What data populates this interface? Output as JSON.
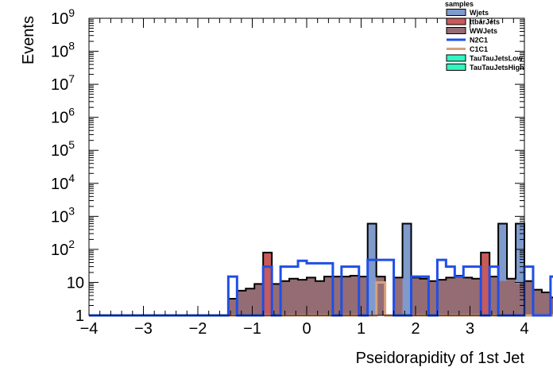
{
  "chart_data": {
    "type": "histogram",
    "xlabel": "Pseidorapidity of 1st Jet",
    "ylabel": "Events",
    "xlim": [
      -4,
      4
    ],
    "ylim": [
      1,
      1000000000
    ],
    "ylog": true,
    "bin_edges_start": -4,
    "bin_width": 0.16,
    "x_ticks": [
      {
        "v": -4,
        "label": "−4"
      },
      {
        "v": -3,
        "label": "−3"
      },
      {
        "v": -2,
        "label": "−2"
      },
      {
        "v": -1,
        "label": "−1"
      },
      {
        "v": 0,
        "label": "0"
      },
      {
        "v": 1,
        "label": "1"
      },
      {
        "v": 2,
        "label": "2"
      },
      {
        "v": 3,
        "label": "3"
      },
      {
        "v": 4,
        "label": "4"
      }
    ],
    "y_ticks": [
      {
        "v": 1,
        "base": "1",
        "exp": ""
      },
      {
        "v": 10,
        "base": "10",
        "exp": ""
      },
      {
        "v": 100,
        "base": "10",
        "exp": "2"
      },
      {
        "v": 1000,
        "base": "10",
        "exp": "3"
      },
      {
        "v": 10000,
        "base": "10",
        "exp": "4"
      },
      {
        "v": 100000,
        "base": "10",
        "exp": "5"
      },
      {
        "v": 1000000,
        "base": "10",
        "exp": "6"
      },
      {
        "v": 10000000,
        "base": "10",
        "exp": "7"
      },
      {
        "v": 100000000,
        "base": "10",
        "exp": "8"
      },
      {
        "v": 1000000000,
        "base": "10",
        "exp": "9"
      }
    ],
    "legend": {
      "title": "samples",
      "position": "top-right",
      "entries": [
        {
          "name": "Wjets",
          "style": "fill",
          "color": "#7f9acc"
        },
        {
          "name": "ttbarJets",
          "style": "fill",
          "color": "#c85a5a"
        },
        {
          "name": "WWJets",
          "style": "fill",
          "color": "#946c74"
        },
        {
          "name": "N2C1",
          "style": "line",
          "color": "#1f4fe6"
        },
        {
          "name": "C1C1",
          "style": "line",
          "color": "#d9a07a"
        },
        {
          "name": "TauTauJetsLow",
          "style": "fill",
          "color": "#33f5c0"
        },
        {
          "name": "TauTauJetsHigh",
          "style": "fill",
          "color": "#33f5c0"
        }
      ]
    },
    "stack": {
      "wwjets": [
        0,
        0,
        0,
        0,
        0,
        0,
        0,
        0,
        0,
        0,
        0,
        0,
        0,
        0,
        0,
        0,
        3.2,
        5.6,
        6.5,
        9,
        0,
        9,
        11,
        13,
        12,
        14,
        11,
        15,
        15,
        15,
        16,
        15,
        0,
        15,
        0,
        14,
        0,
        14,
        13,
        11,
        12,
        14,
        16,
        14,
        13,
        0,
        15,
        11,
        13,
        9,
        11,
        6,
        5,
        3.5,
        0,
        0,
        0,
        0,
        0,
        0,
        0,
        0,
        0,
        0,
        0,
        0,
        0,
        0,
        0,
        0,
        0,
        0,
        0,
        0,
        0,
        0,
        0,
        0,
        0,
        0
      ],
      "ttbar": [
        0,
        0,
        0,
        0,
        0,
        0,
        0,
        0,
        0,
        0,
        0,
        0,
        0,
        0,
        0,
        0,
        3.2,
        5.6,
        6.5,
        9,
        80,
        9,
        11,
        13,
        12,
        14,
        11,
        15,
        15,
        15,
        16,
        15,
        0,
        15,
        0,
        14,
        0,
        14,
        13,
        11,
        12,
        14,
        16,
        14,
        13,
        80,
        15,
        11,
        13,
        9,
        11,
        6,
        5,
        3.5,
        0,
        0,
        0,
        0,
        0,
        0,
        0,
        0,
        0,
        0,
        0,
        0,
        0,
        0,
        0,
        0,
        0,
        0,
        0,
        0,
        0,
        0,
        0,
        0,
        0,
        0
      ],
      "wjets": [
        0,
        0,
        0,
        0,
        0,
        0,
        0,
        0,
        0,
        0,
        0,
        0,
        0,
        0,
        0,
        0,
        3.2,
        5.6,
        6.5,
        9,
        80,
        9,
        11,
        13,
        12,
        14,
        11,
        15,
        15,
        15,
        16,
        15,
        600,
        15,
        0,
        14,
        600,
        14,
        13,
        11,
        12,
        14,
        16,
        14,
        13,
        80,
        15,
        600,
        13,
        600,
        11,
        6,
        5,
        3.5,
        0,
        0,
        0,
        0,
        0,
        0,
        0,
        0,
        0,
        0,
        0,
        0,
        0,
        0,
        0,
        0,
        0,
        0,
        0,
        0,
        0,
        0,
        0,
        0,
        0,
        0
      ]
    },
    "n2c1": [
      0,
      0,
      0,
      0,
      0,
      0,
      0,
      0,
      0,
      0,
      0,
      0,
      0,
      0,
      0,
      0,
      15,
      1,
      1,
      1,
      30,
      1,
      30,
      30,
      45,
      38,
      38,
      38,
      1,
      30,
      30,
      1,
      48,
      48,
      48,
      1,
      1,
      15,
      15,
      1,
      48,
      30,
      15,
      30,
      30,
      1,
      30,
      1,
      1,
      1,
      30,
      1,
      1,
      15,
      15,
      0,
      0,
      0,
      0,
      0,
      0,
      0,
      0,
      0,
      0,
      0,
      0,
      0,
      0,
      0,
      0,
      0,
      0,
      0,
      0,
      0,
      0,
      0,
      0,
      0
    ],
    "c1c1": [
      0,
      0,
      0,
      0,
      0,
      0,
      0,
      0,
      0,
      0,
      0,
      0,
      0,
      0,
      0,
      0,
      0,
      0,
      0,
      0,
      0,
      0,
      0,
      0,
      0,
      0,
      0,
      0,
      0,
      0,
      0,
      0,
      0,
      10,
      0,
      0,
      0,
      0,
      0,
      0,
      0,
      0,
      0,
      0,
      0,
      0,
      0,
      0,
      0,
      0,
      0,
      0,
      0,
      0,
      0,
      0,
      0,
      0,
      0,
      0,
      0,
      0,
      0,
      0,
      0,
      0,
      0,
      0,
      0,
      0,
      0,
      0,
      0,
      0,
      0,
      0,
      0,
      0,
      0,
      0
    ]
  }
}
